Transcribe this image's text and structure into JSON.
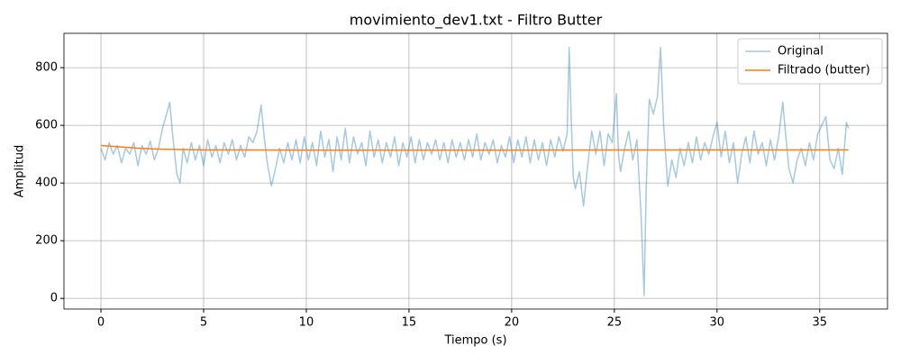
{
  "chart_data": {
    "type": "line",
    "title": "movimiento_dev1.txt - Filtro Butter",
    "x_label": "Tiempo (s)",
    "y_label": "Amplitud",
    "xlim": [
      -1.8,
      38.3
    ],
    "ylim": [
      -37,
      919
    ],
    "xticks": [
      0,
      5,
      10,
      15,
      20,
      25,
      30,
      35
    ],
    "yticks": [
      0,
      200,
      400,
      600,
      800
    ],
    "grid": true,
    "legend": "upper right",
    "series": [
      {
        "name": "Original",
        "color": "#1f77b4",
        "alpha": 0.4,
        "x": [
          0,
          0.2,
          0.4,
          0.6,
          0.8,
          1.0,
          1.2,
          1.4,
          1.6,
          1.8,
          2.0,
          2.2,
          2.4,
          2.6,
          2.8,
          3.0,
          3.2,
          3.35,
          3.5,
          3.7,
          3.85,
          4.0,
          4.2,
          4.4,
          4.6,
          4.8,
          5.0,
          5.2,
          5.4,
          5.6,
          5.8,
          6.0,
          6.2,
          6.4,
          6.6,
          6.8,
          7.0,
          7.2,
          7.4,
          7.6,
          7.8,
          7.95,
          8.1,
          8.3,
          8.5,
          8.7,
          8.9,
          9.1,
          9.3,
          9.5,
          9.7,
          9.9,
          10.1,
          10.3,
          10.5,
          10.7,
          10.9,
          11.1,
          11.3,
          11.5,
          11.7,
          11.9,
          12.1,
          12.3,
          12.5,
          12.7,
          12.9,
          13.1,
          13.3,
          13.5,
          13.7,
          13.9,
          14.1,
          14.3,
          14.5,
          14.7,
          14.9,
          15.1,
          15.3,
          15.5,
          15.7,
          15.9,
          16.1,
          16.3,
          16.5,
          16.7,
          16.9,
          17.1,
          17.3,
          17.5,
          17.7,
          17.9,
          18.1,
          18.3,
          18.5,
          18.7,
          18.9,
          19.1,
          19.3,
          19.5,
          19.7,
          19.9,
          20.1,
          20.3,
          20.5,
          20.7,
          20.9,
          21.1,
          21.3,
          21.5,
          21.7,
          21.9,
          22.1,
          22.3,
          22.5,
          22.7,
          22.8,
          22.9,
          23.0,
          23.1,
          23.3,
          23.5,
          23.7,
          23.9,
          24.1,
          24.3,
          24.5,
          24.7,
          24.9,
          25.1,
          25.2,
          25.3,
          25.5,
          25.7,
          25.9,
          26.1,
          26.3,
          26.45,
          26.55,
          26.7,
          26.9,
          27.1,
          27.25,
          27.4,
          27.6,
          27.8,
          28.0,
          28.2,
          28.4,
          28.6,
          28.8,
          29.0,
          29.2,
          29.4,
          29.6,
          29.8,
          30.0,
          30.2,
          30.4,
          30.6,
          30.8,
          31.0,
          31.2,
          31.4,
          31.6,
          31.8,
          32.0,
          32.2,
          32.4,
          32.6,
          32.8,
          33.0,
          33.2,
          33.35,
          33.5,
          33.7,
          33.9,
          34.1,
          34.3,
          34.5,
          34.7,
          34.9,
          35.1,
          35.3,
          35.5,
          35.7,
          35.9,
          36.1,
          36.3,
          36.4
        ],
        "values": [
          520,
          480,
          540,
          500,
          530,
          470,
          520,
          500,
          540,
          460,
          530,
          500,
          545,
          480,
          520,
          590,
          640,
          680,
          560,
          430,
          400,
          520,
          470,
          540,
          480,
          530,
          460,
          550,
          490,
          530,
          470,
          540,
          500,
          550,
          480,
          530,
          490,
          560,
          540,
          580,
          670,
          560,
          470,
          390,
          450,
          520,
          470,
          540,
          480,
          550,
          470,
          560,
          480,
          540,
          460,
          580,
          490,
          550,
          440,
          560,
          480,
          590,
          470,
          560,
          500,
          540,
          460,
          580,
          490,
          550,
          470,
          540,
          490,
          560,
          460,
          540,
          490,
          560,
          470,
          550,
          480,
          540,
          500,
          550,
          480,
          540,
          470,
          550,
          490,
          540,
          480,
          550,
          490,
          570,
          480,
          540,
          500,
          550,
          470,
          530,
          490,
          560,
          470,
          550,
          490,
          560,
          470,
          550,
          480,
          540,
          460,
          550,
          490,
          560,
          510,
          570,
          870,
          620,
          420,
          380,
          440,
          320,
          460,
          580,
          500,
          580,
          460,
          570,
          540,
          710,
          500,
          440,
          520,
          580,
          480,
          550,
          290,
          10,
          380,
          690,
          640,
          700,
          870,
          600,
          390,
          480,
          420,
          520,
          460,
          540,
          470,
          560,
          480,
          540,
          500,
          560,
          610,
          490,
          580,
          470,
          540,
          400,
          500,
          560,
          470,
          580,
          500,
          540,
          460,
          550,
          480,
          560,
          680,
          560,
          450,
          400,
          480,
          520,
          460,
          540,
          480,
          570,
          600,
          630,
          480,
          450,
          520,
          430,
          610,
          590
        ]
      },
      {
        "name": "Filtrado (butter)",
        "color": "#ff7f0e",
        "x": [
          0,
          1,
          2,
          3,
          5,
          10,
          20,
          30,
          36.4
        ],
        "values": [
          530,
          525,
          520,
          517,
          515,
          514,
          514,
          515,
          515
        ]
      }
    ]
  }
}
